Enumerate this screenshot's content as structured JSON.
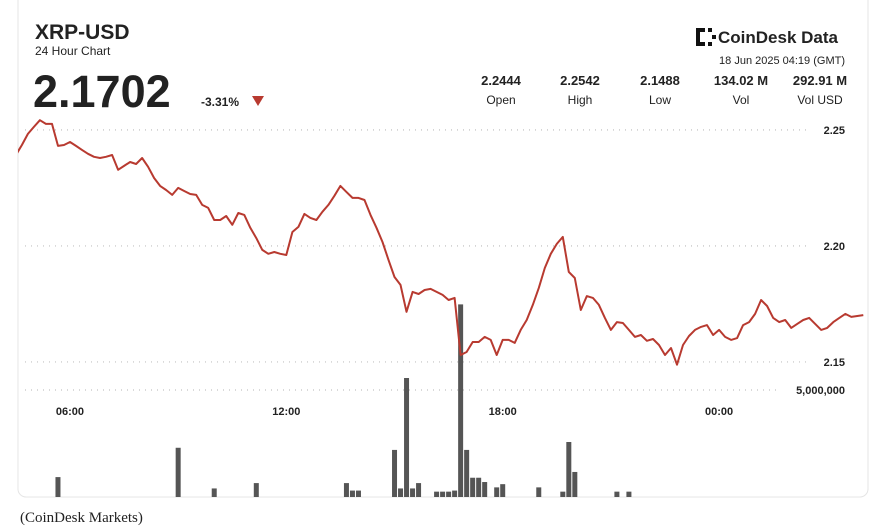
{
  "header": {
    "title": "XRP-USD",
    "subtitle": "24 Hour Chart",
    "price": "2.1702",
    "change": "-3.31%",
    "brand": "CoinDesk Data",
    "timestamp": "18 Jun 2025 04:19 (GMT)",
    "stats": [
      {
        "value": "2.2444",
        "label": "Open"
      },
      {
        "value": "2.2542",
        "label": "High"
      },
      {
        "value": "2.1488",
        "label": "Low"
      },
      {
        "value": "134.02 M",
        "label": "Vol"
      },
      {
        "value": "292.91 M",
        "label": "Vol USD"
      }
    ]
  },
  "caption": "(CoinDesk Markets)",
  "chart_data": {
    "type": "line",
    "grid": true,
    "categories": [
      null,
      null,
      null,
      null,
      null,
      null,
      null,
      null,
      null,
      "06:00",
      null,
      null,
      null,
      null,
      null,
      null,
      null,
      null,
      null,
      null,
      null,
      null,
      null,
      null,
      null,
      null,
      null,
      null,
      null,
      null,
      null,
      null,
      null,
      null,
      null,
      null,
      null,
      null,
      null,
      null,
      null,
      null,
      null,
      null,
      null,
      "12:00",
      null,
      null,
      null,
      null,
      null,
      null,
      null,
      null,
      null,
      null,
      null,
      null,
      null,
      null,
      null,
      null,
      null,
      null,
      null,
      null,
      null,
      null,
      null,
      null,
      null,
      null,
      null,
      null,
      null,
      null,
      null,
      null,
      null,
      null,
      null,
      "18:00",
      null,
      null,
      null,
      null,
      null,
      null,
      null,
      null,
      null,
      null,
      null,
      null,
      null,
      null,
      null,
      null,
      null,
      null,
      null,
      null,
      null,
      null,
      null,
      null,
      null,
      null,
      null,
      null,
      null,
      null,
      null,
      null,
      null,
      null,
      null,
      "00:00",
      null,
      null,
      null,
      null,
      null,
      null,
      null,
      null,
      null,
      null,
      null,
      null,
      null,
      null,
      null,
      null,
      null,
      null,
      null,
      null,
      null,
      null,
      null,
      null
    ],
    "series": [
      {
        "color": "#b83a30",
        "values": [
          2.2392,
          2.2435,
          2.2483,
          2.2513,
          2.2542,
          2.2526,
          2.2526,
          2.2431,
          2.2435,
          2.2448,
          2.2431,
          2.2414,
          2.2397,
          2.2384,
          2.2379,
          2.2384,
          2.2392,
          2.2328,
          2.2345,
          2.2362,
          2.2353,
          2.2379,
          2.2341,
          2.2293,
          2.2259,
          2.2241,
          2.222,
          2.225,
          2.2237,
          2.2224,
          2.222,
          2.2177,
          2.2164,
          2.2112,
          2.2112,
          2.2129,
          2.2091,
          2.2142,
          2.2134,
          2.2078,
          2.2034,
          2.1983,
          2.1966,
          2.1974,
          2.1966,
          2.1961,
          2.206,
          2.2082,
          2.2138,
          2.2121,
          2.2112,
          2.2147,
          2.2177,
          2.2216,
          2.2259,
          2.2233,
          2.2207,
          2.2207,
          2.2198,
          2.2134,
          2.2078,
          2.2017,
          2.194,
          2.1866,
          2.1832,
          2.1716,
          2.1802,
          2.1793,
          2.181,
          2.1815,
          2.1802,
          2.1789,
          2.1767,
          2.1776,
          2.153,
          2.1543,
          2.1586,
          2.1586,
          2.1608,
          2.1595,
          2.153,
          2.1595,
          2.1595,
          2.1582,
          2.1638,
          2.1681,
          2.1746,
          2.1819,
          2.1905,
          2.1966,
          2.2009,
          2.2039,
          2.1888,
          2.1862,
          2.1724,
          2.1784,
          2.1776,
          2.1746,
          2.169,
          2.1638,
          2.1672,
          2.1668,
          2.1638,
          2.1608,
          2.1616,
          2.1591,
          2.1599,
          2.1573,
          2.153,
          2.156,
          2.1488,
          2.1573,
          2.1612,
          2.1638,
          2.1651,
          2.1659,
          2.1616,
          2.1638,
          2.1608,
          2.1595,
          2.1603,
          2.1659,
          2.1672,
          2.1707,
          2.1767,
          2.1741,
          2.169,
          2.1672,
          2.1681,
          2.1647,
          2.1664,
          2.1681,
          2.169,
          2.1664,
          2.1638,
          2.1647,
          2.1672,
          2.169,
          2.1707,
          2.1694,
          2.1698,
          2.1702
        ]
      },
      {
        "type": "bar",
        "axis": "y2",
        "color": "#555555",
        "values": [
          0,
          0,
          0,
          0,
          0,
          0,
          0,
          930000,
          0,
          0,
          0,
          0,
          0,
          0,
          0,
          0,
          0,
          0,
          0,
          0,
          0,
          0,
          0,
          0,
          0,
          0,
          0,
          2300000,
          0,
          0,
          0,
          0,
          0,
          400000,
          0,
          0,
          0,
          0,
          0,
          0,
          650000,
          0,
          0,
          0,
          0,
          0,
          0,
          0,
          0,
          0,
          0,
          0,
          0,
          0,
          0,
          650000,
          300000,
          300000,
          0,
          0,
          0,
          0,
          0,
          2200000,
          400000,
          5560000,
          400000,
          650000,
          0,
          0,
          250000,
          250000,
          250000,
          300000,
          9000000,
          2200000,
          900000,
          900000,
          700000,
          0,
          450000,
          600000,
          0,
          0,
          0,
          0,
          0,
          450000,
          0,
          0,
          0,
          250000,
          2570000,
          1170000,
          0,
          0,
          0,
          0,
          0,
          0,
          250000,
          0,
          250000,
          0,
          0,
          0,
          0,
          0,
          0,
          0,
          0,
          0,
          0,
          0,
          0,
          0,
          0,
          0,
          0,
          0,
          0,
          0,
          0,
          0,
          0,
          0,
          0,
          0,
          0,
          0,
          0,
          0,
          0,
          0,
          0,
          0,
          0,
          0,
          0,
          0,
          0,
          0
        ]
      }
    ],
    "ylim": [
      2.0918,
      2.2629
    ],
    "yticks": [
      2.15,
      {
        "value": 2.2,
        "label": "2.20"
      },
      2.25
    ],
    "y2lim": [
      0,
      18550000
    ],
    "y2ticks": [
      {
        "value": 5000000,
        "label": "5,000,000"
      }
    ]
  }
}
